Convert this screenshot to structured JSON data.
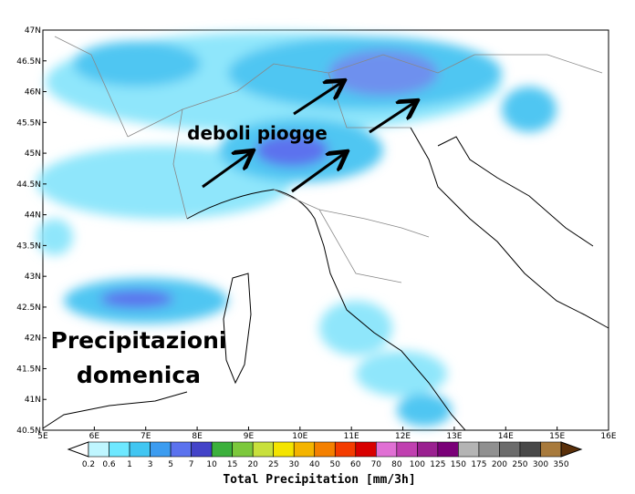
{
  "map": {
    "lat_labels": [
      "47N",
      "46.5N",
      "46N",
      "45.5N",
      "45N",
      "44.5N",
      "44N",
      "43.5N",
      "43N",
      "42.5N",
      "42N",
      "41.5N",
      "41N",
      "40.5N"
    ],
    "lon_labels": [
      "5E",
      "6E",
      "7E",
      "8E",
      "9E",
      "10E",
      "11E",
      "12E",
      "13E",
      "14E",
      "15E",
      "16E"
    ]
  },
  "annotations": {
    "arrow_note": "deboli piogge",
    "caption": [
      "Precipitazioni",
      "domenica"
    ]
  },
  "colorbar": {
    "title": "Total Precipitation [mm/3h]",
    "labels": [
      "0.2",
      "0.6",
      "1",
      "3",
      "5",
      "7",
      "10",
      "15",
      "20",
      "25",
      "30",
      "40",
      "50",
      "60",
      "70",
      "80",
      "100",
      "125",
      "150",
      "175",
      "200",
      "250",
      "300",
      "350"
    ],
    "colors": [
      "#ffffff",
      "#bff6ff",
      "#6ee8ff",
      "#41c6f2",
      "#3c9cf0",
      "#5b72ee",
      "#4343c8",
      "#3cb03c",
      "#7cc83c",
      "#c8e03c",
      "#f4e400",
      "#f4b400",
      "#f48000",
      "#f43c00",
      "#d80000",
      "#e070d4",
      "#c040b0",
      "#9a2090",
      "#7a0078",
      "#b4b4b4",
      "#909090",
      "#6c6c6c",
      "#484848",
      "#a87a3c",
      "#8c5c24",
      "#6e4214",
      "#5a300a"
    ]
  }
}
